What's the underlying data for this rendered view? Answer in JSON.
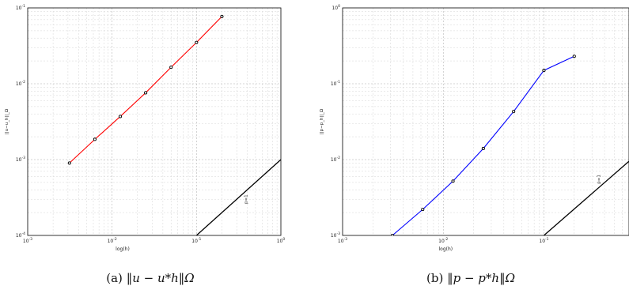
{
  "chart_data": [
    {
      "type": "line",
      "title": "",
      "xlabel": "log(h)",
      "ylabel": "||u−u_h||_Ω",
      "xscale": "log",
      "yscale": "log",
      "xlim": [
        0.001,
        1
      ],
      "ylim": [
        0.0001,
        0.1
      ],
      "grid": true,
      "x_ticks": [
        "10^-3",
        "10^-2",
        "10^-1",
        "10^0"
      ],
      "y_ticks": [
        "10^-4",
        "10^-3",
        "10^-2",
        "10^-1"
      ],
      "series": [
        {
          "color": "#ff0000",
          "marker": "circle",
          "x": [
            0.003125,
            0.00625,
            0.0125,
            0.025,
            0.05,
            0.1,
            0.2
          ],
          "y": [
            0.0009,
            0.00185,
            0.0037,
            0.0076,
            0.0165,
            0.035,
            0.077
          ]
        },
        {
          "color": "#000000",
          "marker": "none",
          "x": [
            0.1,
            1.0
          ],
          "y": [
            0.0001,
            0.001
          ]
        }
      ],
      "annotations": [
        {
          "text": "p=1",
          "x": 0.4,
          "y": 0.0003
        }
      ]
    },
    {
      "type": "line",
      "title": "",
      "xlabel": "log(h)",
      "ylabel": "||p−p_h||_Ω",
      "xscale": "log",
      "yscale": "log",
      "xlim": [
        0.001,
        0.7
      ],
      "ylim": [
        0.001,
        1
      ],
      "grid": true,
      "x_ticks": [
        "10^-3",
        "10^-2",
        "10^-1"
      ],
      "y_ticks": [
        "10^-3",
        "10^-2",
        "10^-1",
        "10^0"
      ],
      "series": [
        {
          "color": "#0000ff",
          "marker": "circle",
          "x": [
            0.003125,
            0.00625,
            0.0125,
            0.025,
            0.05,
            0.1,
            0.2
          ],
          "y": [
            0.001,
            0.0022,
            0.0052,
            0.014,
            0.043,
            0.15,
            0.23
          ]
        },
        {
          "color": "#000000",
          "marker": "none",
          "x": [
            0.1,
            0.7
          ],
          "y": [
            0.001,
            0.0095
          ]
        }
      ],
      "annotations": [
        {
          "text": "p=1",
          "x": 0.36,
          "y": 0.0055
        }
      ]
    }
  ],
  "captions": {
    "a": {
      "label": "(a)",
      "math": "‖u − u*h‖Ω"
    },
    "b": {
      "label": "(b)",
      "math": "‖p − p*h‖Ω"
    }
  }
}
